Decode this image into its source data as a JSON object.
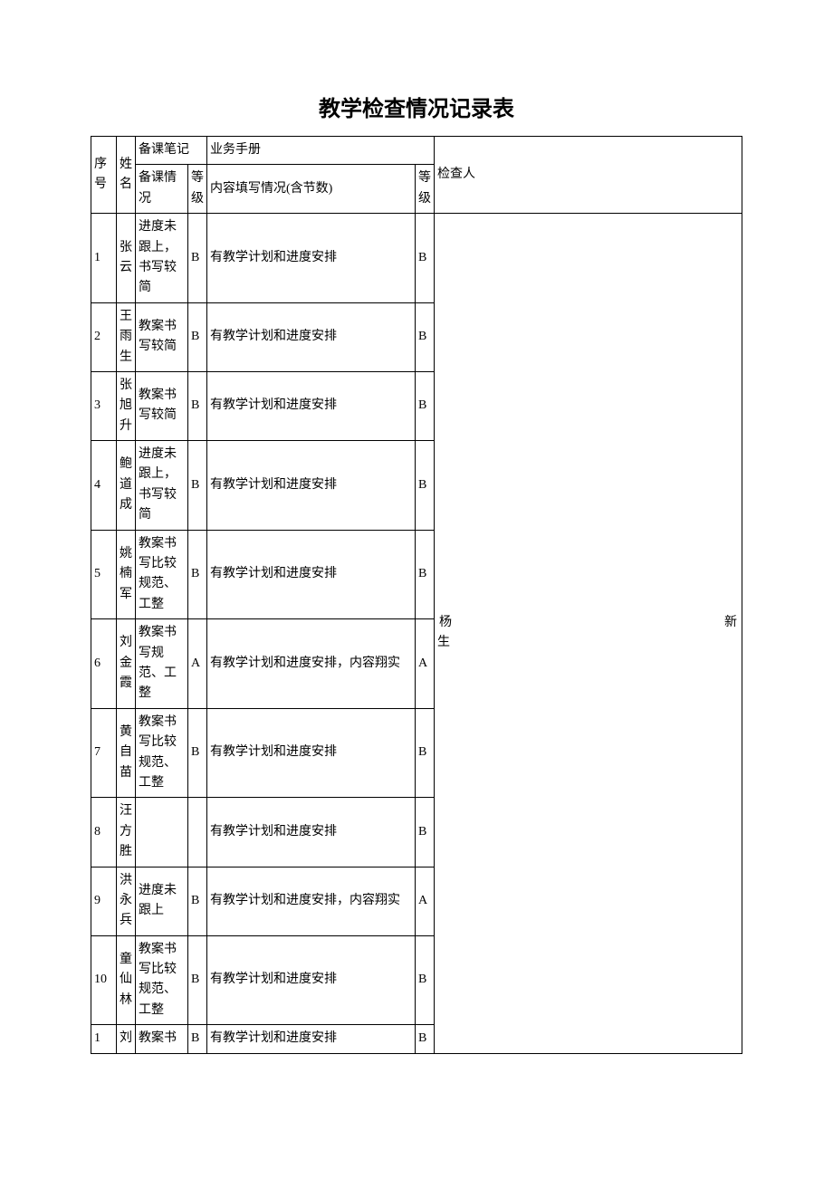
{
  "title": "教学检查情况记录表",
  "headers": {
    "seq": "序号",
    "name": "姓名",
    "prep_notes": "备课笔记",
    "prep_situation": "备课情况",
    "grade1": "等级",
    "manual": "业务手册",
    "content": "内容填写情况(含节数)",
    "grade2": "等级",
    "inspector": "检查人"
  },
  "inspector_name_parts": {
    "char1": "杨",
    "char2": "新",
    "char3": "生"
  },
  "rows": [
    {
      "seq": "1",
      "name": "张云",
      "prep": "进度未跟上，书写较简",
      "grade1": "B",
      "content": "有教学计划和进度安排",
      "grade2": "B"
    },
    {
      "seq": "2",
      "name": "王雨生",
      "prep": "教案书写较简",
      "grade1": "B",
      "content": "有教学计划和进度安排",
      "grade2": "B"
    },
    {
      "seq": "3",
      "name": "张旭升",
      "prep": "教案书写较简",
      "grade1": "B",
      "content": "有教学计划和进度安排",
      "grade2": "B"
    },
    {
      "seq": "4",
      "name": "鲍道成",
      "prep": "进度未跟上，书写较简",
      "grade1": "B",
      "content": "有教学计划和进度安排",
      "grade2": "B"
    },
    {
      "seq": "5",
      "name": "姚楠军",
      "prep": "教案书写比较规范、工整",
      "grade1": "B",
      "content": "有教学计划和进度安排",
      "grade2": "B"
    },
    {
      "seq": "6",
      "name": "刘金霞",
      "prep": "教案书写规范、工整",
      "grade1": "A",
      "content": "有教学计划和进度安排，内容翔实",
      "grade2": "A"
    },
    {
      "seq": "7",
      "name": "黄自苗",
      "prep": "教案书写比较规范、工整",
      "grade1": "B",
      "content": "有教学计划和进度安排",
      "grade2": "B"
    },
    {
      "seq": "8",
      "name": "汪方胜",
      "prep": "",
      "grade1": "",
      "content": "有教学计划和进度安排",
      "grade2": "B"
    },
    {
      "seq": "9",
      "name": "洪永兵",
      "prep": "进度未跟上",
      "grade1": "B",
      "content": "有教学计划和进度安排，内容翔实",
      "grade2": "A"
    },
    {
      "seq": "10",
      "name": "童仙林",
      "prep": "教案书写比较规范、工整",
      "grade1": "B",
      "content": "有教学计划和进度安排",
      "grade2": "B"
    },
    {
      "seq": "1",
      "name": "刘",
      "prep": "教案书",
      "grade1": "B",
      "content": "有教学计划和进度安排",
      "grade2": "B"
    }
  ]
}
